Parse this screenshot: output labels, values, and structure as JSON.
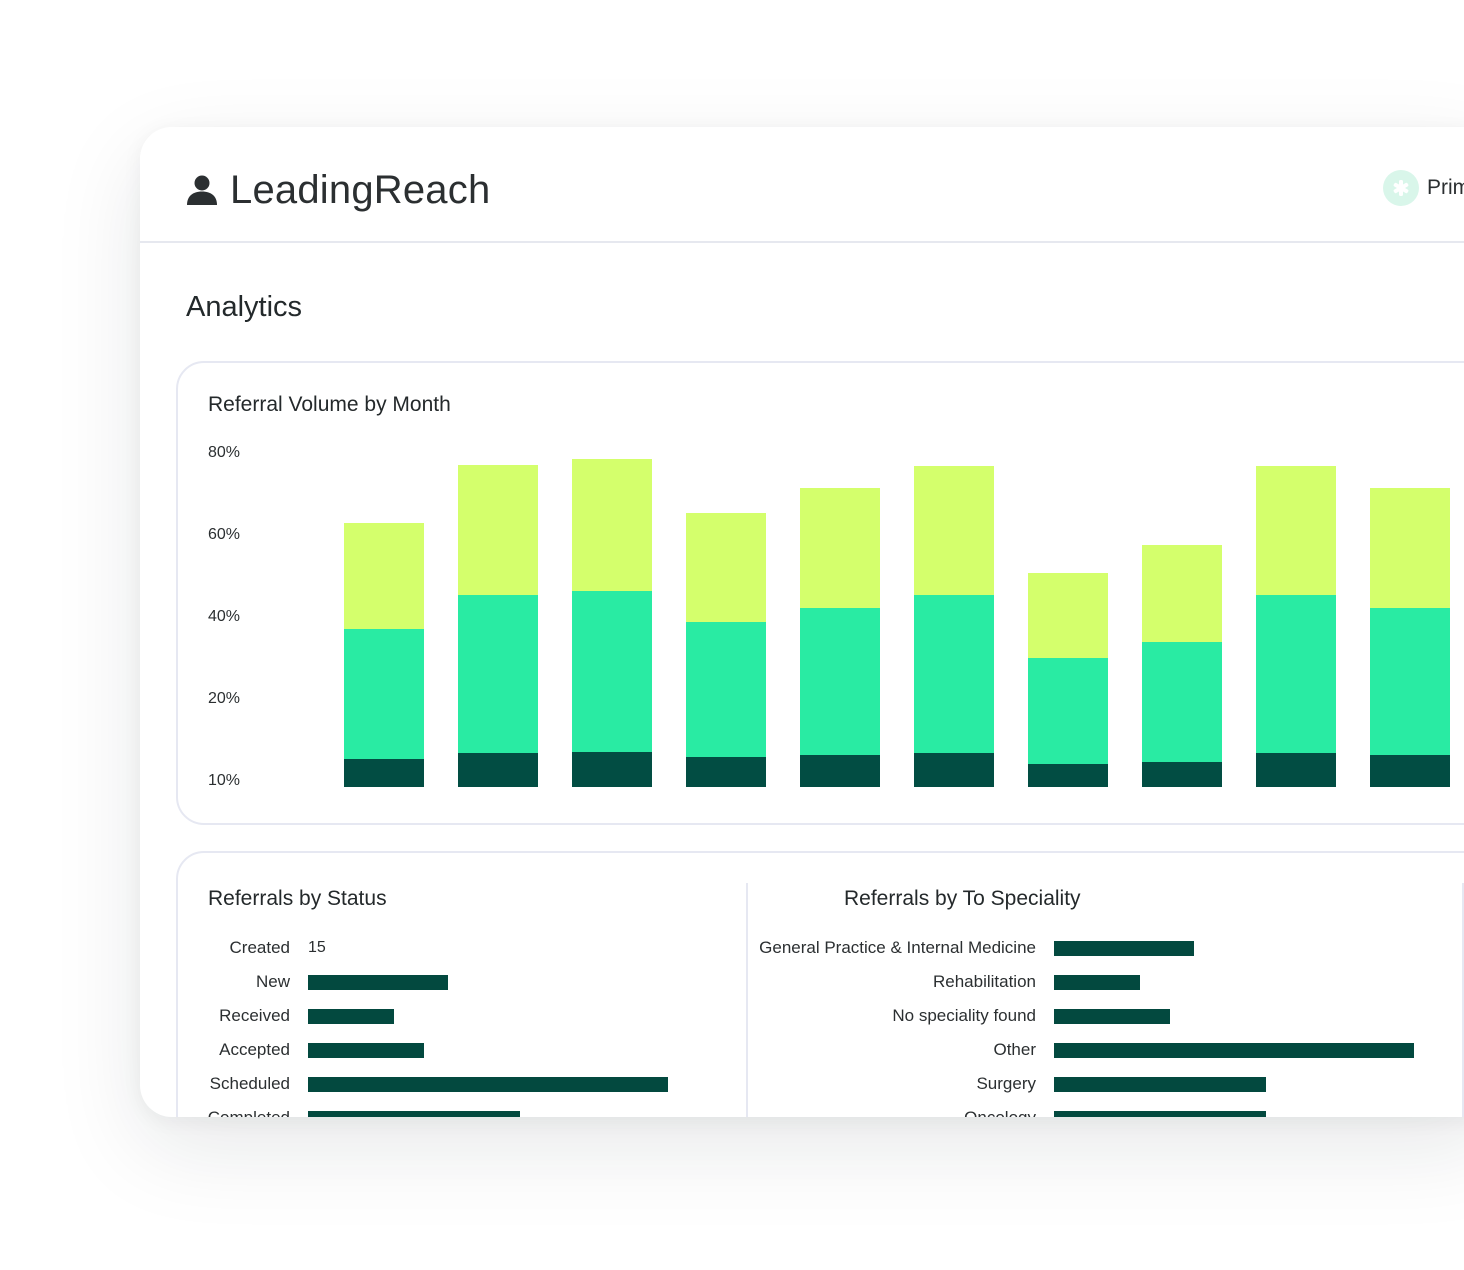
{
  "app": {
    "name": "LeadingReach",
    "org_label": "Prim"
  },
  "page": {
    "title": "Analytics"
  },
  "colors": {
    "top": "#d4ff6c",
    "middle": "#29eba3",
    "bottom": "#024d43",
    "hbar": "#03493f"
  },
  "volume_chart": {
    "title": "Referral Volume by Month",
    "y_ticks": [
      "80%",
      "60%",
      "40%",
      "20%",
      "10%"
    ]
  },
  "status_chart": {
    "title": "Referrals by Status",
    "rows": [
      {
        "label": "Created",
        "value_text": "15"
      },
      {
        "label": "New"
      },
      {
        "label": "Received"
      },
      {
        "label": "Accepted"
      },
      {
        "label": "Scheduled"
      },
      {
        "label": "Completed"
      }
    ]
  },
  "speciality_chart": {
    "title": "Referrals by To Speciality",
    "rows": [
      {
        "label": "General Practice & Internal Medicine"
      },
      {
        "label": "Rehabilitation"
      },
      {
        "label": "No speciality found"
      },
      {
        "label": "Other"
      },
      {
        "label": "Surgery"
      },
      {
        "label": "Oncology"
      }
    ]
  },
  "chart_data": [
    {
      "type": "bar",
      "stacked": true,
      "title": "Referral Volume by Month",
      "ytick_labels": [
        "80%",
        "60%",
        "40%",
        "20%",
        "10%"
      ],
      "ylim": [
        0,
        80
      ],
      "categories": [
        "",
        "",
        "",
        "",
        "",
        "",
        "",
        "",
        "",
        ""
      ],
      "series": [
        {
          "values": [
            6.8,
            8.3,
            8.6,
            7.2,
            7.8,
            8.3,
            5.6,
            6.2,
            8.3,
            7.8
          ]
        },
        {
          "values": [
            31.8,
            38.6,
            39.2,
            33.0,
            35.8,
            38.6,
            25.8,
            29.2,
            38.6,
            35.8
          ]
        },
        {
          "values": [
            25.9,
            31.7,
            32.1,
            26.7,
            29.3,
            31.5,
            20.9,
            23.6,
            31.5,
            29.3
          ]
        }
      ]
    },
    {
      "type": "bar",
      "orientation": "horizontal",
      "title": "Referrals by Status",
      "categories": [
        "Created",
        "New",
        "Received",
        "Accepted",
        "Scheduled",
        "Completed"
      ],
      "values": [
        15,
        140,
        86,
        116,
        360,
        212
      ],
      "data_labels": [
        "15"
      ]
    },
    {
      "type": "bar",
      "orientation": "horizontal",
      "title": "Referrals by To Speciality",
      "categories": [
        "General Practice & Internal Medicine",
        "Rehabilitation",
        "No speciality found",
        "Other",
        "Surgery",
        "Oncology"
      ],
      "values": [
        140,
        86,
        116,
        360,
        212,
        212
      ]
    }
  ]
}
